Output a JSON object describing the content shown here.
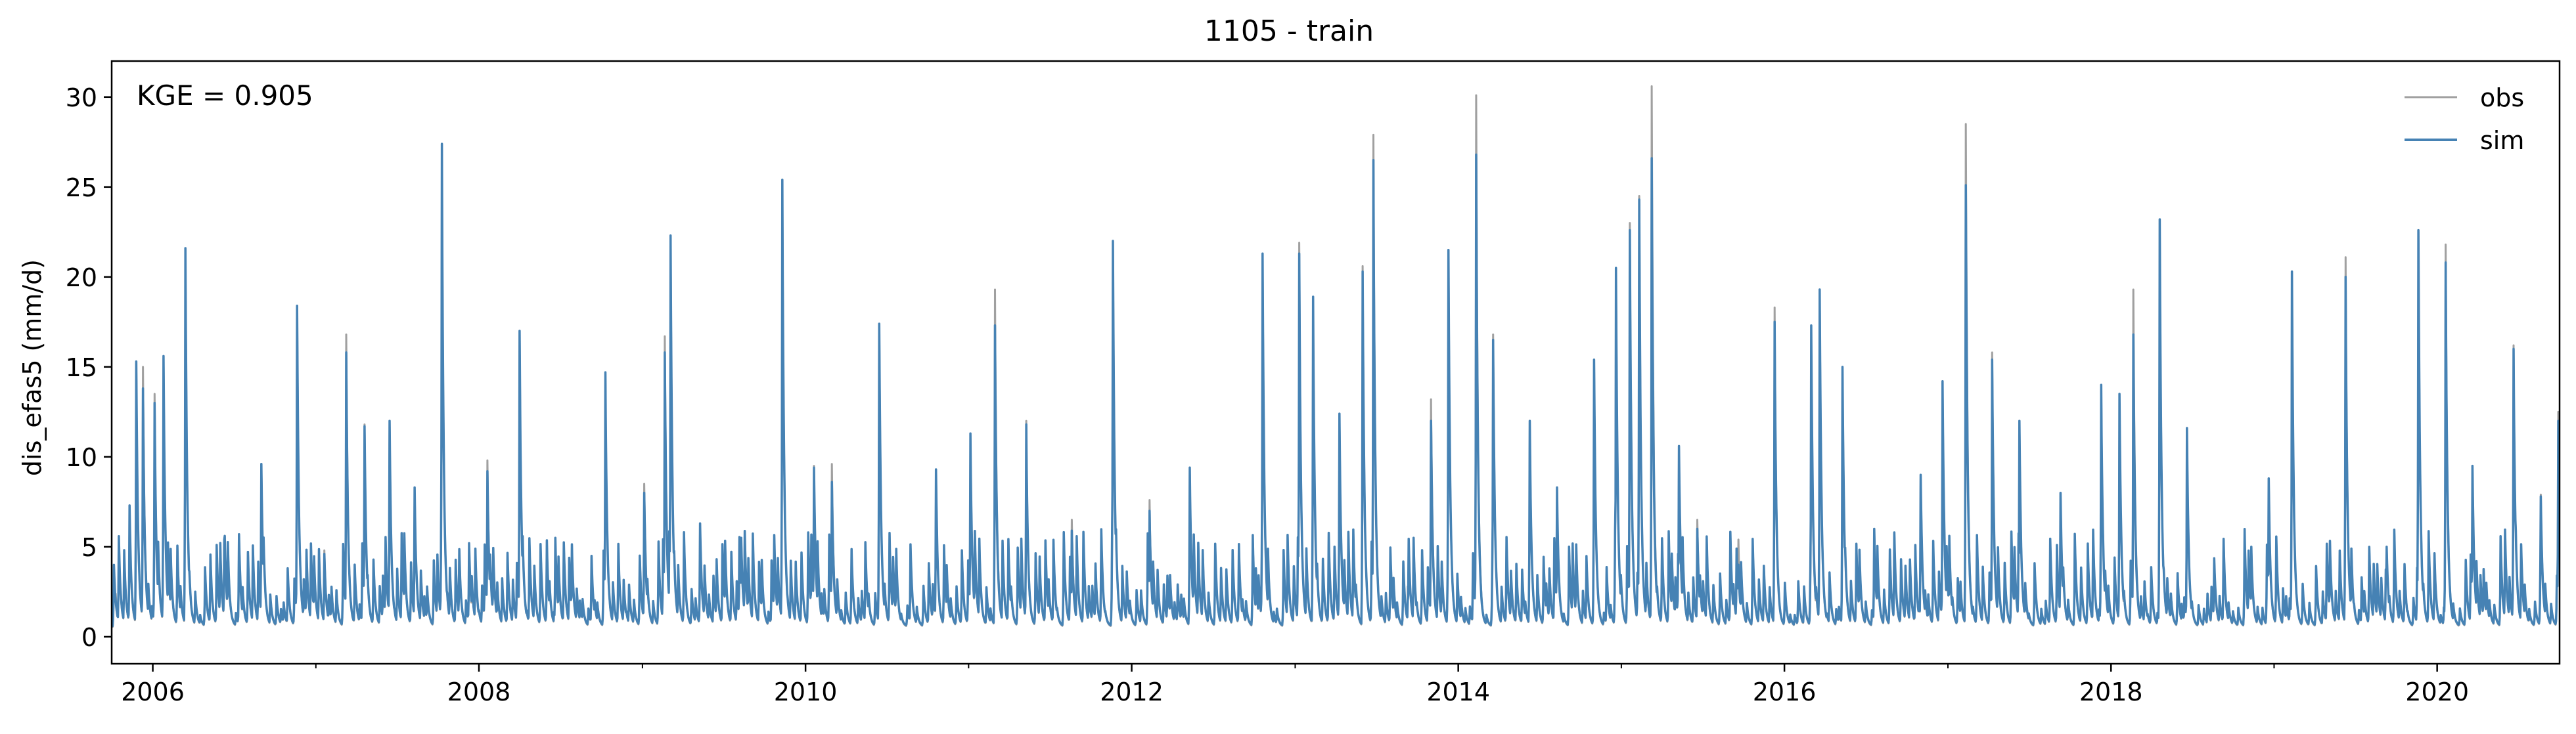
{
  "chart_data": {
    "type": "line",
    "title": "1105 - train",
    "ylabel": "dis_efas5 (mm/d)",
    "xlabel": "",
    "annotation": "KGE = 0.905",
    "xlim": [
      "2005-10-01",
      "2020-10-01"
    ],
    "ylim": [
      -1.5,
      32
    ],
    "x_ticks": [
      2006,
      2008,
      2010,
      2012,
      2014,
      2016,
      2018,
      2020
    ],
    "y_ticks": [
      0,
      5,
      10,
      15,
      20,
      25,
      30
    ],
    "grid": false,
    "legend": "top-right",
    "series": [
      {
        "name": "obs",
        "color": "#a0a0a0",
        "style": "daily discharge, recession between events",
        "peaks": [
          [
            "2005-10-10",
            2.4
          ],
          [
            "2005-11-10",
            7.0
          ],
          [
            "2005-11-25",
            15.2
          ],
          [
            "2005-12-10",
            15.0
          ],
          [
            "2006-01-05",
            13.5
          ],
          [
            "2006-01-25",
            15.5
          ],
          [
            "2006-03-15",
            21.6
          ],
          [
            "2006-06-10",
            5.2
          ],
          [
            "2006-09-01",
            9.6
          ],
          [
            "2006-11-20",
            18.4
          ],
          [
            "2007-01-20",
            4.8
          ],
          [
            "2007-03-10",
            16.8
          ],
          [
            "2007-04-20",
            11.8
          ],
          [
            "2007-06-15",
            12.0
          ],
          [
            "2007-08-10",
            8.3
          ],
          [
            "2007-10-10",
            27.4
          ],
          [
            "2007-12-10",
            5.0
          ],
          [
            "2008-01-20",
            9.8
          ],
          [
            "2008-04-01",
            17.0
          ],
          [
            "2008-06-20",
            5.0
          ],
          [
            "2008-10-10",
            14.7
          ],
          [
            "2009-01-05",
            8.5
          ],
          [
            "2009-02-20",
            16.7
          ],
          [
            "2009-03-05",
            22.2
          ],
          [
            "2009-05-10",
            6.3
          ],
          [
            "2009-08-10",
            5.5
          ],
          [
            "2009-11-10",
            25.4
          ],
          [
            "2010-01-20",
            9.5
          ],
          [
            "2010-03-01",
            9.6
          ],
          [
            "2010-06-15",
            17.4
          ],
          [
            "2010-10-20",
            9.3
          ],
          [
            "2011-01-05",
            11.2
          ],
          [
            "2011-03-01",
            19.3
          ],
          [
            "2011-05-10",
            12.0
          ],
          [
            "2011-08-20",
            6.5
          ],
          [
            "2011-11-20",
            22.0
          ],
          [
            "2012-02-10",
            7.6
          ],
          [
            "2012-05-10",
            9.4
          ],
          [
            "2012-10-20",
            21.2
          ],
          [
            "2013-01-10",
            21.9
          ],
          [
            "2013-02-10",
            18.5
          ],
          [
            "2013-04-10",
            12.4
          ],
          [
            "2013-06-01",
            20.6
          ],
          [
            "2013-06-25",
            27.9
          ],
          [
            "2013-09-10",
            2.8
          ],
          [
            "2013-11-01",
            13.2
          ],
          [
            "2013-12-10",
            21.5
          ],
          [
            "2014-02-10",
            30.1
          ],
          [
            "2014-03-20",
            16.8
          ],
          [
            "2014-06-10",
            12.0
          ],
          [
            "2014-08-10",
            8.3
          ],
          [
            "2014-11-01",
            15.4
          ],
          [
            "2014-12-20",
            20.5
          ],
          [
            "2015-01-20",
            23.0
          ],
          [
            "2015-02-10",
            24.5
          ],
          [
            "2015-03-10",
            30.6
          ],
          [
            "2015-05-10",
            10.5
          ],
          [
            "2015-06-20",
            6.5
          ],
          [
            "2015-09-20",
            5.4
          ],
          [
            "2015-12-10",
            18.3
          ],
          [
            "2016-03-01",
            16.5
          ],
          [
            "2016-03-20",
            19.3
          ],
          [
            "2016-05-10",
            15.0
          ],
          [
            "2016-07-20",
            6.0
          ],
          [
            "2016-11-01",
            9.0
          ],
          [
            "2016-12-20",
            14.2
          ],
          [
            "2017-02-10",
            28.5
          ],
          [
            "2017-04-10",
            15.8
          ],
          [
            "2017-06-10",
            12.0
          ],
          [
            "2017-09-10",
            8.0
          ],
          [
            "2017-12-10",
            14.0
          ],
          [
            "2018-01-20",
            12.8
          ],
          [
            "2018-02-20",
            19.3
          ],
          [
            "2018-04-20",
            23.2
          ],
          [
            "2018-06-20",
            11.6
          ],
          [
            "2018-12-20",
            8.8
          ],
          [
            "2019-02-10",
            20.2
          ],
          [
            "2019-06-10",
            21.1
          ],
          [
            "2019-09-10",
            5.0
          ],
          [
            "2019-11-20",
            22.5
          ],
          [
            "2020-01-20",
            21.8
          ],
          [
            "2020-03-20",
            9.5
          ],
          [
            "2020-06-20",
            16.2
          ],
          [
            "2020-08-20",
            7.9
          ],
          [
            "2020-09-28",
            12.5
          ]
        ]
      },
      {
        "name": "sim",
        "color": "#4682b4",
        "style": "daily discharge, recession between events",
        "peaks": [
          [
            "2005-10-10",
            2.0
          ],
          [
            "2005-11-10",
            7.3
          ],
          [
            "2005-11-25",
            15.3
          ],
          [
            "2005-12-10",
            13.8
          ],
          [
            "2006-01-05",
            13.0
          ],
          [
            "2006-01-25",
            15.6
          ],
          [
            "2006-03-15",
            21.6
          ],
          [
            "2006-06-10",
            5.4
          ],
          [
            "2006-09-01",
            9.6
          ],
          [
            "2006-11-20",
            18.4
          ],
          [
            "2007-01-20",
            4.6
          ],
          [
            "2007-03-10",
            15.8
          ],
          [
            "2007-04-20",
            11.7
          ],
          [
            "2007-06-15",
            12.0
          ],
          [
            "2007-08-10",
            8.3
          ],
          [
            "2007-10-10",
            27.4
          ],
          [
            "2007-12-10",
            5.2
          ],
          [
            "2008-01-20",
            9.2
          ],
          [
            "2008-04-01",
            17.0
          ],
          [
            "2008-06-20",
            5.5
          ],
          [
            "2008-10-10",
            14.7
          ],
          [
            "2009-01-05",
            8.0
          ],
          [
            "2009-02-20",
            15.8
          ],
          [
            "2009-03-05",
            22.3
          ],
          [
            "2009-05-10",
            6.3
          ],
          [
            "2009-08-10",
            5.5
          ],
          [
            "2009-11-10",
            25.4
          ],
          [
            "2010-01-20",
            9.4
          ],
          [
            "2010-03-01",
            8.6
          ],
          [
            "2010-06-15",
            17.4
          ],
          [
            "2010-10-20",
            9.3
          ],
          [
            "2011-01-05",
            11.3
          ],
          [
            "2011-03-01",
            17.3
          ],
          [
            "2011-05-10",
            11.8
          ],
          [
            "2011-08-20",
            5.9
          ],
          [
            "2011-11-20",
            22.0
          ],
          [
            "2012-02-10",
            7.0
          ],
          [
            "2012-05-10",
            9.4
          ],
          [
            "2012-10-20",
            21.3
          ],
          [
            "2013-01-10",
            21.3
          ],
          [
            "2013-02-10",
            18.9
          ],
          [
            "2013-04-10",
            12.4
          ],
          [
            "2013-06-01",
            20.3
          ],
          [
            "2013-06-25",
            26.5
          ],
          [
            "2013-09-10",
            2.0
          ],
          [
            "2013-11-01",
            12.0
          ],
          [
            "2013-12-10",
            21.5
          ],
          [
            "2014-02-10",
            26.8
          ],
          [
            "2014-03-20",
            16.5
          ],
          [
            "2014-06-10",
            12.0
          ],
          [
            "2014-08-10",
            8.3
          ],
          [
            "2014-11-01",
            15.4
          ],
          [
            "2014-12-20",
            20.5
          ],
          [
            "2015-01-20",
            22.6
          ],
          [
            "2015-02-10",
            24.3
          ],
          [
            "2015-03-10",
            26.6
          ],
          [
            "2015-05-10",
            10.6
          ],
          [
            "2015-06-20",
            6.0
          ],
          [
            "2015-09-20",
            4.0
          ],
          [
            "2015-12-10",
            17.5
          ],
          [
            "2016-03-01",
            17.3
          ],
          [
            "2016-03-20",
            19.3
          ],
          [
            "2016-05-10",
            15.0
          ],
          [
            "2016-07-20",
            6.0
          ],
          [
            "2016-11-01",
            9.0
          ],
          [
            "2016-12-20",
            14.2
          ],
          [
            "2017-02-10",
            25.1
          ],
          [
            "2017-04-10",
            15.4
          ],
          [
            "2017-06-10",
            12.0
          ],
          [
            "2017-09-10",
            8.0
          ],
          [
            "2017-12-10",
            14.0
          ],
          [
            "2018-01-20",
            13.5
          ],
          [
            "2018-02-20",
            16.8
          ],
          [
            "2018-04-20",
            23.2
          ],
          [
            "2018-06-20",
            11.6
          ],
          [
            "2018-12-20",
            8.8
          ],
          [
            "2019-02-10",
            20.3
          ],
          [
            "2019-06-10",
            20.0
          ],
          [
            "2019-09-10",
            5.0
          ],
          [
            "2019-11-20",
            22.6
          ],
          [
            "2020-01-20",
            20.8
          ],
          [
            "2020-03-20",
            9.5
          ],
          [
            "2020-06-20",
            16.0
          ],
          [
            "2020-08-20",
            7.8
          ],
          [
            "2020-09-28",
            12.0
          ]
        ]
      }
    ]
  }
}
